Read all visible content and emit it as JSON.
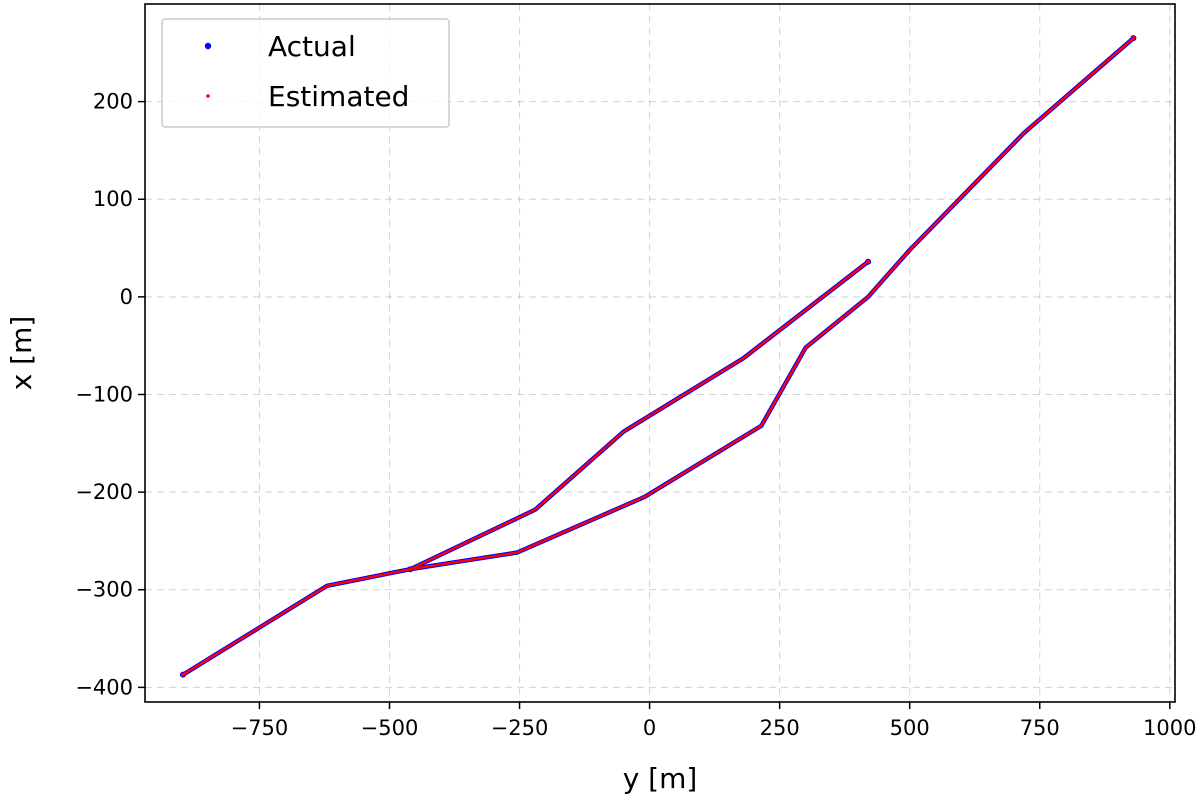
{
  "chart_data": {
    "type": "scatter",
    "title": "",
    "xlabel": "y [m]",
    "ylabel": "x [m]",
    "xlim": [
      -970,
      1010
    ],
    "ylim": [
      -415,
      300
    ],
    "xticks": [
      -750,
      -500,
      -250,
      0,
      250,
      500,
      750,
      1000
    ],
    "yticks": [
      -400,
      -300,
      -200,
      -100,
      0,
      100,
      200
    ],
    "xtick_labels": [
      "−750",
      "−500",
      "−250",
      "0",
      "250",
      "500",
      "750",
      "1000"
    ],
    "ytick_labels": [
      "−400",
      "−300",
      "−200",
      "−100",
      "0",
      "100",
      "200"
    ],
    "grid": true,
    "legend_position": "top-left",
    "series": [
      {
        "name": "Actual",
        "color": "#0000ff",
        "marker": "dot",
        "path": [
          [
            -897,
            -387
          ],
          [
            -620,
            -296
          ],
          [
            -460,
            -279
          ],
          [
            -255,
            -262
          ],
          [
            -10,
            -205
          ],
          [
            215,
            -132
          ],
          [
            300,
            -52
          ],
          [
            420,
            0
          ],
          [
            500,
            48
          ],
          [
            720,
            168
          ],
          [
            930,
            265
          ]
        ],
        "path2": [
          [
            -460,
            -279
          ],
          [
            -220,
            -218
          ],
          [
            -50,
            -138
          ],
          [
            180,
            -63
          ],
          [
            420,
            36
          ]
        ]
      },
      {
        "name": "Estimated",
        "color": "#ff0000",
        "marker": "small-dot",
        "path": [
          [
            -897,
            -387
          ],
          [
            -620,
            -296
          ],
          [
            -460,
            -279
          ],
          [
            -255,
            -262
          ],
          [
            -10,
            -205
          ],
          [
            215,
            -132
          ],
          [
            300,
            -52
          ],
          [
            420,
            0
          ],
          [
            500,
            48
          ],
          [
            720,
            168
          ],
          [
            930,
            265
          ]
        ],
        "path2": [
          [
            -460,
            -279
          ],
          [
            -220,
            -218
          ],
          [
            -50,
            -138
          ],
          [
            180,
            -63
          ],
          [
            420,
            36
          ]
        ]
      }
    ]
  }
}
